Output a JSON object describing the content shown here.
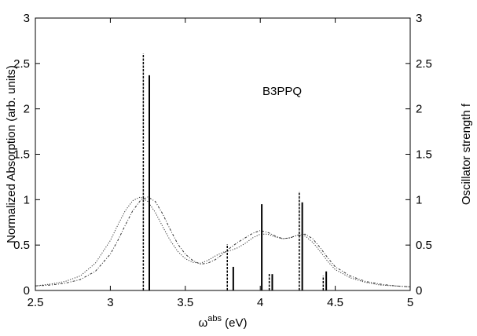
{
  "chart_data": {
    "type": "line",
    "annotation": "B3PPQ",
    "xlabel": {
      "main": "ω",
      "sup": "abs",
      "unit": " (eV)"
    },
    "ylabel": "Normalized Absorption (arb. units)",
    "y2label": "Oscillator strength f",
    "xlim": [
      2.5,
      5.0
    ],
    "ylim": [
      0,
      3
    ],
    "y2lim": [
      0,
      3
    ],
    "xticks": [
      2.5,
      3,
      3.5,
      4,
      4.5,
      5
    ],
    "xtick_labels": [
      "2.5",
      "3",
      "3.5",
      "4",
      "4.5",
      "5"
    ],
    "yticks": [
      0,
      0.5,
      1,
      1.5,
      2,
      2.5,
      3
    ],
    "ytick_labels": [
      "0",
      "0.5",
      "1",
      "1.5",
      "2",
      "2.5",
      "3"
    ],
    "y2tick_labels": [
      "0",
      "0.5",
      "1",
      "1.5",
      "2",
      "2.5",
      "3"
    ],
    "grid": false,
    "series": [
      {
        "style": "dotted",
        "x": [
          2.5,
          2.6,
          2.7,
          2.8,
          2.9,
          3.0,
          3.05,
          3.1,
          3.15,
          3.2,
          3.25,
          3.3,
          3.35,
          3.4,
          3.45,
          3.5,
          3.55,
          3.6,
          3.65,
          3.7,
          3.75,
          3.8,
          3.85,
          3.9,
          3.95,
          4.0,
          4.05,
          4.1,
          4.15,
          4.2,
          4.25,
          4.3,
          4.35,
          4.4,
          4.45,
          4.5,
          4.6,
          4.7,
          4.8,
          4.9,
          5.0
        ],
        "y": [
          0.05,
          0.07,
          0.1,
          0.16,
          0.3,
          0.55,
          0.72,
          0.88,
          0.99,
          1.03,
          0.98,
          0.86,
          0.7,
          0.55,
          0.43,
          0.35,
          0.31,
          0.3,
          0.33,
          0.38,
          0.42,
          0.44,
          0.47,
          0.52,
          0.58,
          0.62,
          0.62,
          0.59,
          0.57,
          0.58,
          0.61,
          0.6,
          0.53,
          0.43,
          0.32,
          0.23,
          0.14,
          0.09,
          0.06,
          0.05,
          0.04
        ]
      },
      {
        "style": "dash-dot",
        "x": [
          2.5,
          2.6,
          2.7,
          2.8,
          2.9,
          3.0,
          3.05,
          3.1,
          3.15,
          3.2,
          3.25,
          3.3,
          3.35,
          3.4,
          3.45,
          3.5,
          3.55,
          3.6,
          3.65,
          3.7,
          3.75,
          3.8,
          3.85,
          3.9,
          3.95,
          4.0,
          4.05,
          4.1,
          4.15,
          4.2,
          4.25,
          4.3,
          4.35,
          4.4,
          4.45,
          4.5,
          4.6,
          4.7,
          4.8,
          4.9,
          5.0
        ],
        "y": [
          0.05,
          0.06,
          0.08,
          0.12,
          0.21,
          0.4,
          0.55,
          0.72,
          0.88,
          0.99,
          1.03,
          0.98,
          0.84,
          0.67,
          0.51,
          0.4,
          0.33,
          0.29,
          0.3,
          0.34,
          0.4,
          0.47,
          0.53,
          0.58,
          0.63,
          0.66,
          0.64,
          0.6,
          0.57,
          0.58,
          0.61,
          0.62,
          0.57,
          0.47,
          0.36,
          0.26,
          0.16,
          0.1,
          0.07,
          0.05,
          0.04
        ]
      }
    ],
    "sticks": [
      {
        "x": 3.22,
        "f": 2.61,
        "style": "dashed"
      },
      {
        "x": 3.26,
        "f": 2.37,
        "style": "solid"
      },
      {
        "x": 3.78,
        "f": 0.51,
        "style": "dashed"
      },
      {
        "x": 3.82,
        "f": 0.26,
        "style": "solid"
      },
      {
        "x": 4.01,
        "f": 0.95,
        "style": "solid"
      },
      {
        "x": 4.06,
        "f": 0.19,
        "style": "dashed"
      },
      {
        "x": 4.08,
        "f": 0.18,
        "style": "solid"
      },
      {
        "x": 4.26,
        "f": 1.09,
        "style": "dashed"
      },
      {
        "x": 4.28,
        "f": 0.97,
        "style": "solid"
      },
      {
        "x": 4.42,
        "f": 0.16,
        "style": "dashed"
      },
      {
        "x": 4.44,
        "f": 0.21,
        "style": "solid"
      }
    ]
  }
}
